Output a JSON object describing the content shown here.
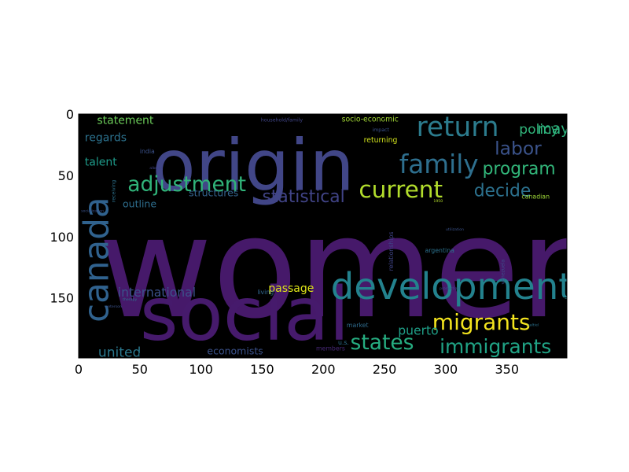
{
  "chart_data": {
    "type": "wordcloud-image",
    "xlim": [
      0,
      399
    ],
    "ylim": [
      199,
      0
    ],
    "x_ticks": [
      0,
      50,
      100,
      150,
      200,
      250,
      300,
      350
    ],
    "y_ticks": [
      0,
      50,
      100,
      150
    ],
    "background": "#000000",
    "axis_color": "#000000",
    "words": [
      {
        "text": "women",
        "x": 16,
        "y": 165,
        "size": 114,
        "color": "#46196a"
      },
      {
        "text": "origin",
        "x": 60,
        "y": 62,
        "size": 58,
        "color": "#414687"
      },
      {
        "text": "social",
        "x": 50,
        "y": 184,
        "size": 60,
        "color": "#461a6c"
      },
      {
        "text": "developments",
        "x": 206,
        "y": 151,
        "size": 30,
        "color": "#23828e"
      },
      {
        "text": "canada",
        "x": 24,
        "y": 170,
        "size": 28,
        "color": "#30628e",
        "rotate": -90
      },
      {
        "text": "return",
        "x": 276,
        "y": 18,
        "size": 22,
        "color": "#2c7c8e"
      },
      {
        "text": "family",
        "x": 262,
        "y": 48,
        "size": 21,
        "color": "#2e6f8e"
      },
      {
        "text": "current",
        "x": 229,
        "y": 68,
        "size": 19,
        "color": "#b2dd2c"
      },
      {
        "text": "migrants",
        "x": 289,
        "y": 176,
        "size": 18,
        "color": "#f3e41e"
      },
      {
        "text": "adjustment",
        "x": 40,
        "y": 63,
        "size": 17,
        "color": "#30b379"
      },
      {
        "text": "statistical",
        "x": 150,
        "y": 72,
        "size": 14,
        "color": "#414487"
      },
      {
        "text": "labor",
        "x": 340,
        "y": 33,
        "size": 15,
        "color": "#3b538b"
      },
      {
        "text": "program",
        "x": 330,
        "y": 49,
        "size": 14,
        "color": "#32b67a"
      },
      {
        "text": "decide",
        "x": 323,
        "y": 67,
        "size": 14,
        "color": "#2c718e"
      },
      {
        "text": "states",
        "x": 222,
        "y": 192,
        "size": 17,
        "color": "#26ad81"
      },
      {
        "text": "immigrants",
        "x": 295,
        "y": 195,
        "size": 16,
        "color": "#20a385"
      },
      {
        "text": "united",
        "x": 16,
        "y": 198,
        "size": 11,
        "color": "#2a788e"
      },
      {
        "text": "international",
        "x": 32,
        "y": 149,
        "size": 10,
        "color": "#3b528b"
      },
      {
        "text": "passage",
        "x": 155,
        "y": 145,
        "size": 9,
        "color": "#dde318"
      },
      {
        "text": "puerto",
        "x": 261,
        "y": 180,
        "size": 10,
        "color": "#1fa088"
      },
      {
        "text": "economists",
        "x": 105,
        "y": 196,
        "size": 8,
        "color": "#3b528b"
      },
      {
        "text": "statement",
        "x": 15,
        "y": 8,
        "size": 9,
        "color": "#6ccd5a"
      },
      {
        "text": "regards",
        "x": 5,
        "y": 22,
        "size": 9,
        "color": "#2c728e"
      },
      {
        "text": "talent",
        "x": 5,
        "y": 42,
        "size": 9,
        "color": "#1e9b8a"
      },
      {
        "text": "outline",
        "x": 36,
        "y": 76,
        "size": 8,
        "color": "#2e6e8e"
      },
      {
        "text": "structures",
        "x": 90,
        "y": 67,
        "size": 8,
        "color": "#33638d"
      },
      {
        "text": "policy",
        "x": 360,
        "y": 16,
        "size": 11,
        "color": "#31b57b"
      },
      {
        "text": "may",
        "x": 375,
        "y": 16,
        "size": 12,
        "color": "#2db27d"
      },
      {
        "text": "socio-economic",
        "x": 215,
        "y": 6,
        "size": 6,
        "color": "#a5db36"
      },
      {
        "text": "returning",
        "x": 233,
        "y": 23,
        "size": 6,
        "color": "#d0e11c"
      },
      {
        "text": "argentina",
        "x": 283,
        "y": 113,
        "size": 5,
        "color": "#2c728e"
      },
      {
        "text": "living",
        "x": 146,
        "y": 147,
        "size": 5,
        "color": "#31688e"
      },
      {
        "text": "market",
        "x": 219,
        "y": 174,
        "size": 5,
        "color": "#2f6c8e"
      },
      {
        "text": "u.s.",
        "x": 212,
        "y": 188,
        "size": 5,
        "color": "#2d718e"
      },
      {
        "text": "members",
        "x": 194,
        "y": 193,
        "size": 5,
        "color": "#482878"
      },
      {
        "text": "relationships",
        "x": 257,
        "y": 128,
        "size": 5,
        "color": "#404588",
        "rotate": -90
      },
      {
        "text": "canadian",
        "x": 362,
        "y": 69,
        "size": 5,
        "color": "#a0da39"
      },
      {
        "text": "india",
        "x": 50,
        "y": 32,
        "size": 5,
        "color": "#3b528b"
      },
      {
        "text": "household/family",
        "x": 149,
        "y": 6,
        "size": 4,
        "color": "#404588"
      },
      {
        "text": "impact",
        "x": 240,
        "y": 14,
        "size": 4,
        "color": "#3b528b"
      },
      {
        "text": "venezuela",
        "x": 348,
        "y": 139,
        "size": 4,
        "color": "#3e4c8a",
        "rotate": -90
      },
      {
        "text": "receiving",
        "x": 30,
        "y": 72,
        "size": 4,
        "color": "#2c728e",
        "rotate": -90
      },
      {
        "text": "socialization",
        "x": 2,
        "y": 80,
        "size": 3,
        "color": "#3b528b"
      },
      {
        "text": "peterson",
        "x": 22,
        "y": 158,
        "size": 3,
        "color": "#3b528b"
      },
      {
        "text": "therapy",
        "x": 36,
        "y": 152,
        "size": 3,
        "color": "#2c728e"
      },
      {
        "text": "alberta",
        "x": 58,
        "y": 45,
        "size": 3,
        "color": "#414487"
      },
      {
        "text": "1950",
        "x": 290,
        "y": 72,
        "size": 3,
        "color": "#b5de2b"
      },
      {
        "text": "production",
        "x": 295,
        "y": 143,
        "size": 3,
        "color": "#3b528b"
      },
      {
        "text": "utilization",
        "x": 300,
        "y": 95,
        "size": 3,
        "color": "#3b528b"
      },
      {
        "text": "saltiel",
        "x": 367,
        "y": 173,
        "size": 3,
        "color": "#2c728e"
      }
    ]
  }
}
